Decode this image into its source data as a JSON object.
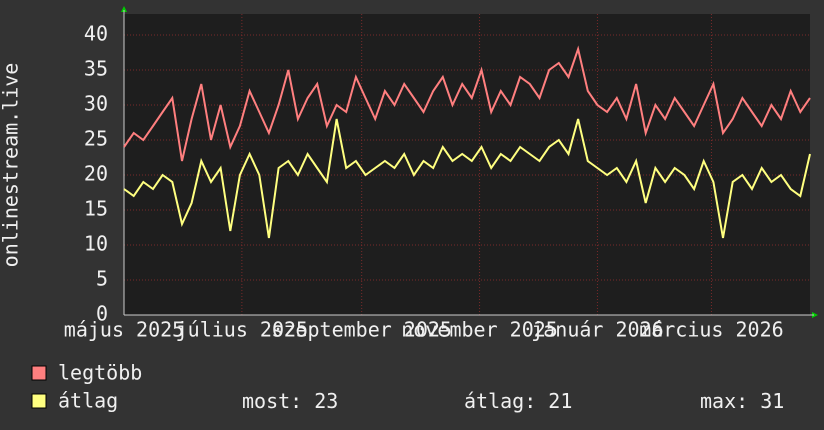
{
  "chart_data": {
    "type": "line",
    "y_label": "onlinestream.live",
    "ylim": [
      0,
      43
    ],
    "yticks": [
      0,
      5,
      10,
      15,
      20,
      25,
      30,
      35,
      40
    ],
    "xlim": [
      0,
      71
    ],
    "xticks": [
      {
        "value": 0,
        "label": "május 2025"
      },
      {
        "value": 12.2,
        "label": "július 2025"
      },
      {
        "value": 24.6,
        "label": "szeptember 2025"
      },
      {
        "value": 36.8,
        "label": "november 2025"
      },
      {
        "value": 49,
        "label": "január 2026"
      },
      {
        "value": 60.8,
        "label": "március 2026"
      }
    ],
    "grid": true,
    "series": [
      {
        "name": "legtöbb",
        "color": "#ff7f7f",
        "values": [
          24,
          26,
          25,
          27,
          29,
          31,
          22,
          28,
          33,
          25,
          30,
          24,
          27,
          32,
          29,
          26,
          30,
          35,
          28,
          31,
          33,
          27,
          30,
          29,
          34,
          31,
          28,
          32,
          30,
          33,
          31,
          29,
          32,
          34,
          30,
          33,
          31,
          35,
          29,
          32,
          30,
          34,
          33,
          31,
          35,
          36,
          34,
          38,
          32,
          30,
          29,
          31,
          28,
          33,
          26,
          30,
          28,
          31,
          29,
          27,
          30,
          33,
          26,
          28,
          31,
          29,
          27,
          30,
          28,
          32,
          29,
          31
        ]
      },
      {
        "name": "átlag",
        "color": "#ffff80",
        "values": [
          18,
          17,
          19,
          18,
          20,
          19,
          13,
          16,
          22,
          19,
          21,
          12,
          20,
          23,
          20,
          11,
          21,
          22,
          20,
          23,
          21,
          19,
          28,
          21,
          22,
          20,
          21,
          22,
          21,
          23,
          20,
          22,
          21,
          24,
          22,
          23,
          22,
          24,
          21,
          23,
          22,
          24,
          23,
          22,
          24,
          25,
          23,
          28,
          22,
          21,
          20,
          21,
          19,
          22,
          16,
          21,
          19,
          21,
          20,
          18,
          22,
          19,
          11,
          19,
          20,
          18,
          21,
          19,
          20,
          18,
          17,
          23
        ]
      }
    ],
    "stats": [
      {
        "label": "most:",
        "value": 23
      },
      {
        "label": "átlag:",
        "value": 21
      },
      {
        "label": "max:",
        "value": 31
      }
    ]
  }
}
